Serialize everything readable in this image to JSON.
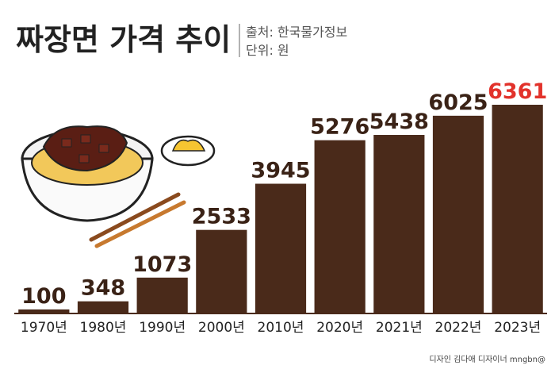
{
  "chart_data": {
    "type": "bar",
    "title": "짜장면 가격 추이",
    "source": "출처: 한국물가정보",
    "unit": "단위: 원",
    "credit": "디자인 김다애 디자이너 mngbn@",
    "categories": [
      "1970년",
      "1980년",
      "1990년",
      "2000년",
      "2010년",
      "2020년",
      "2021년",
      "2022년",
      "2023년"
    ],
    "values": [
      100,
      348,
      1073,
      2533,
      3945,
      5276,
      5438,
      6025,
      6361
    ],
    "color": "#4a2a1a",
    "value_label_colors": [
      "#3a2216",
      "#3a2216",
      "#3a2216",
      "#3a2216",
      "#3a2216",
      "#3a2216",
      "#3a2216",
      "#3a2216",
      "#e2322b"
    ]
  }
}
